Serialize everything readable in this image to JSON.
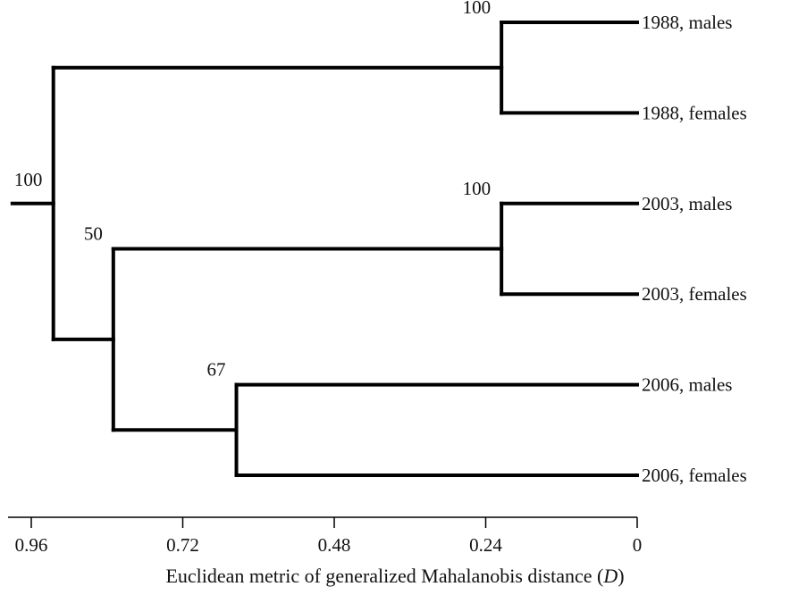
{
  "chart_data": {
    "type": "dendrogram",
    "orientation": "leaves-right",
    "xlabel_prefix": "Euclidean metric of generalized Mahalanobis distance (",
    "xlabel_var": "D",
    "xlabel_suffix": ")",
    "xlim": [
      0.96,
      0
    ],
    "ticks": [
      {
        "value": 0.96,
        "label": "0.96"
      },
      {
        "value": 0.72,
        "label": "0.72"
      },
      {
        "value": 0.48,
        "label": "0.48"
      },
      {
        "value": 0.24,
        "label": "0.24"
      },
      {
        "value": 0,
        "label": "0"
      }
    ],
    "leaves": [
      {
        "id": "L1",
        "label": "1988, males"
      },
      {
        "id": "L2",
        "label": "1988, females"
      },
      {
        "id": "L3",
        "label": "2003, males"
      },
      {
        "id": "L4",
        "label": "2003, females"
      },
      {
        "id": "L5",
        "label": "2006, males"
      },
      {
        "id": "L6",
        "label": "2006, females"
      }
    ],
    "clusters": [
      {
        "id": "C1988",
        "children": [
          "L1",
          "L2"
        ],
        "height": 0.215,
        "support": "100"
      },
      {
        "id": "C2003",
        "children": [
          "L3",
          "L4"
        ],
        "height": 0.215,
        "support": "100"
      },
      {
        "id": "C2006",
        "children": [
          "L5",
          "L6"
        ],
        "height": 0.635,
        "support": "67"
      },
      {
        "id": "C0306",
        "children": [
          "C2003",
          "C2006"
        ],
        "height": 0.83,
        "support": "50"
      },
      {
        "id": "ROOT",
        "children": [
          "C1988",
          "C0306"
        ],
        "height": 0.925,
        "support": "100"
      }
    ],
    "root": "ROOT",
    "root_stub_to": 0.99
  }
}
